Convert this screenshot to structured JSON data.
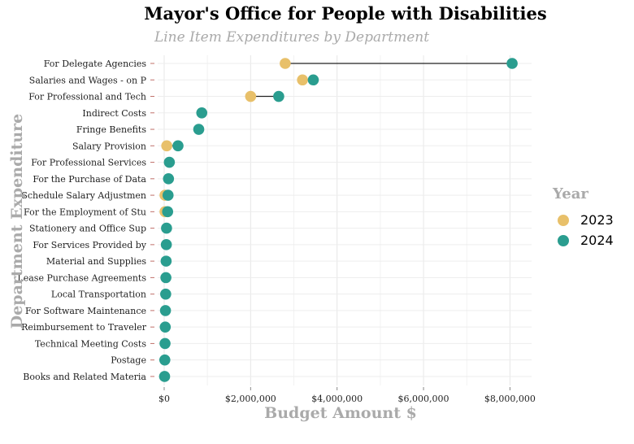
{
  "chart_data": {
    "type": "scatter",
    "title": "Mayor's Office for People with Disabilities",
    "subtitle": "Line Item Expenditures by Department",
    "xlabel": "Budget Amount $",
    "ylabel": "Department Expenditure",
    "xlim": [
      -150000,
      8500000
    ],
    "xticks": [
      0,
      2000000,
      4000000,
      6000000,
      8000000
    ],
    "xtick_labels": [
      "$0",
      "$2,000,000",
      "$4,000,000",
      "$6,000,000",
      "$8,000,000"
    ],
    "grid": true,
    "legend": {
      "title": "Year",
      "placement": "right",
      "entries": [
        {
          "label": "2023",
          "color": "#e8c06a"
        },
        {
          "label": "2024",
          "color": "#2a9d8f"
        }
      ]
    },
    "categories": [
      "For Delegate Agencies",
      "Salaries and Wages - on P",
      "For Professional and Tech",
      "Indirect Costs",
      "Fringe Benefits",
      "Salary Provision",
      "For Professional Services",
      "For the Purchase of Data",
      "Schedule Salary Adjustmen",
      "For the Employment of Stu",
      "Stationery and Office Sup",
      "For Services Provided by",
      "Material and Supplies",
      "Lease Purchase Agreements",
      "Local Transportation",
      "For Software Maintenance",
      "Reimbursement to Traveler",
      "Technical Meeting Costs",
      "Postage",
      "Books and Related Materia"
    ],
    "series": [
      {
        "name": "2023",
        "color": "#e8c06a",
        "values": [
          2800000,
          3200000,
          2000000,
          null,
          null,
          60000,
          null,
          null,
          20000,
          20000,
          null,
          null,
          null,
          null,
          null,
          null,
          null,
          null,
          null,
          null
        ]
      },
      {
        "name": "2024",
        "color": "#2a9d8f",
        "values": [
          8050000,
          3450000,
          2650000,
          870000,
          800000,
          320000,
          120000,
          100000,
          90000,
          80000,
          55000,
          50000,
          45000,
          40000,
          35000,
          30000,
          25000,
          20000,
          15000,
          10000
        ]
      }
    ]
  }
}
